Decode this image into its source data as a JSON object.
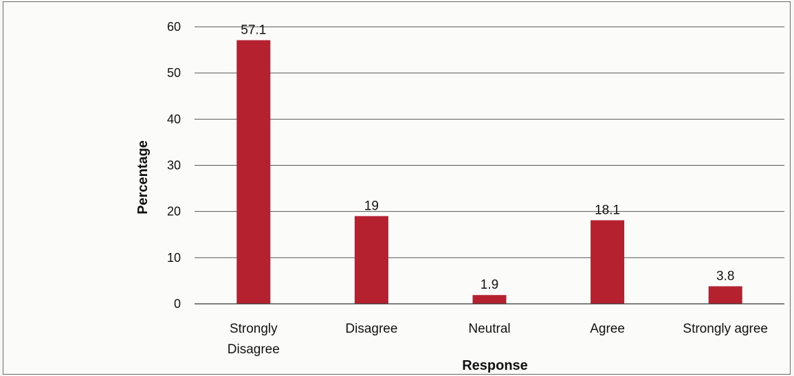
{
  "chart_data": {
    "type": "bar",
    "categories": [
      [
        "Strongly",
        "Disagree"
      ],
      [
        "Disagree"
      ],
      [
        "Neutral"
      ],
      [
        "Agree"
      ],
      [
        "Strongly agree"
      ]
    ],
    "values": [
      57.1,
      19,
      1.9,
      18.1,
      3.8
    ],
    "data_labels": [
      "57.1",
      "19",
      "1.9",
      "18.1",
      "3.8"
    ],
    "xlabel": "Response",
    "ylabel": "Percentage",
    "ylim": [
      0,
      60
    ],
    "yticks": [
      "0",
      "10",
      "20",
      "30",
      "40",
      "50",
      "60"
    ],
    "grid": "horizontal",
    "bar_color": "#b5212f"
  }
}
